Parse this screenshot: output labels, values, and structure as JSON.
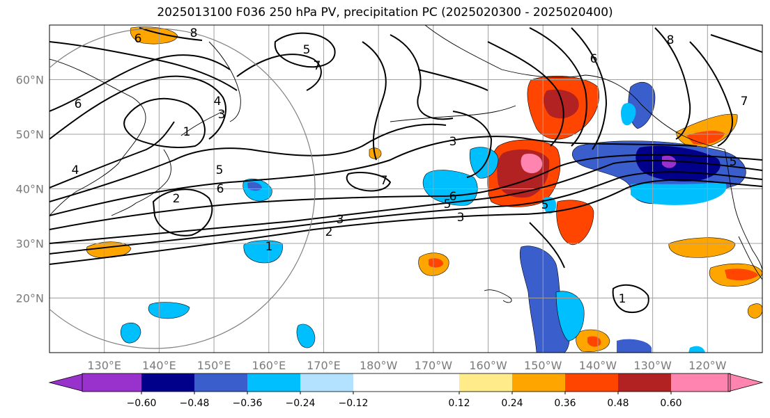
{
  "title": "2025013100 F036 250 hPa PV, precipitation PC (2025020300 - 2025020400)",
  "chart_data": {
    "type": "heatmap",
    "title": "2025013100 F036 250 hPa PV, precipitation PC (2025020300 - 2025020400)",
    "lat_ticks": [
      "20°N",
      "30°N",
      "40°N",
      "50°N",
      "60°N"
    ],
    "lat_values": [
      20,
      30,
      40,
      50,
      60
    ],
    "lon_ticks": [
      "130°E",
      "140°E",
      "150°E",
      "160°E",
      "170°E",
      "180°W",
      "170°W",
      "160°W",
      "150°W",
      "140°W",
      "130°W",
      "120°W"
    ],
    "lon_values": [
      130,
      140,
      150,
      160,
      170,
      180,
      190,
      200,
      210,
      220,
      230,
      240
    ],
    "lon_range": [
      120,
      250
    ],
    "lat_range": [
      10,
      70
    ],
    "grid": true,
    "colorbar": {
      "orientation": "horizontal",
      "ticks": [
        "−0.60",
        "−0.48",
        "−0.36",
        "−0.24",
        "−0.12",
        "0.12",
        "0.24",
        "0.36",
        "0.48",
        "0.60"
      ],
      "levels": [
        -0.6,
        -0.48,
        -0.36,
        -0.24,
        -0.12,
        0.12,
        0.24,
        0.36,
        0.48,
        0.6
      ],
      "colors": [
        "#9932cc",
        "#00008b",
        "#3a5fcd",
        "#00bfff",
        "#b2e2ff",
        "#ffffff",
        "#ffeb8a",
        "#ffa500",
        "#ff4500",
        "#b22222",
        "#ff85b0"
      ],
      "extend": "both"
    },
    "pv_contour_labels": [
      "8",
      "6",
      "5",
      "7",
      "4",
      "3",
      "1",
      "6",
      "5",
      "6",
      "2",
      "4",
      "3",
      "2",
      "1",
      "5",
      "6",
      "3",
      "7",
      "5",
      "6",
      "8",
      "7",
      "5",
      "3",
      "1"
    ]
  }
}
